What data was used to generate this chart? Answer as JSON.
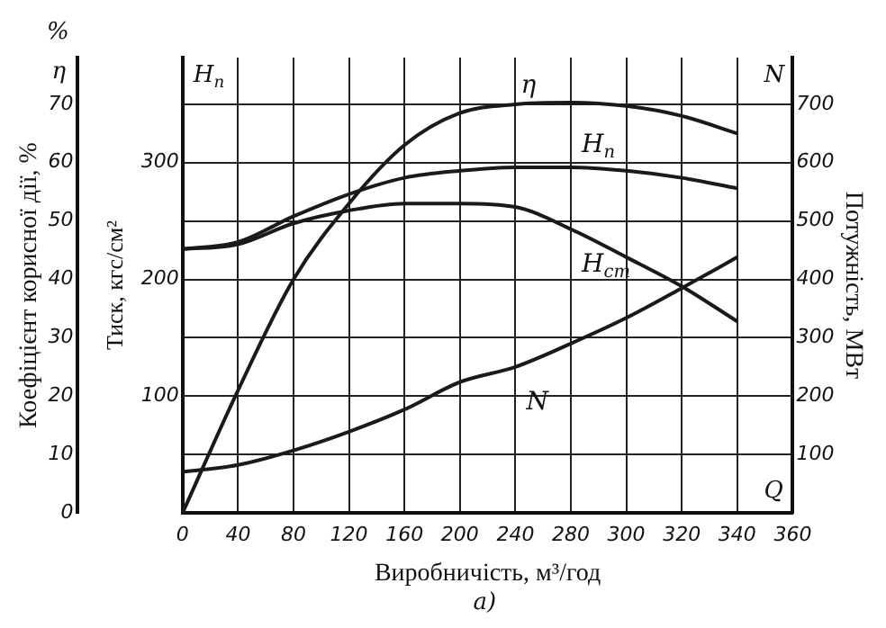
{
  "chart_data": {
    "type": "line",
    "xlabel": "Виробничість, м³/год",
    "ylabel": "Коефіцієнт корисної дії, %",
    "y2label": "Тиск, кгс/см²",
    "y3label": "Потужність, МВт",
    "categories": [
      "0",
      "40",
      "80",
      "120",
      "160",
      "200",
      "240",
      "280",
      "300",
      "320",
      "340",
      "360"
    ],
    "series": [
      {
        "name": "η",
        "color": "#1a1a1a",
        "values": [
          0,
          21,
          40,
          53,
          63,
          68.5,
          70,
          70.3,
          69.7,
          68,
          65,
          null
        ]
      },
      {
        "name": "H$_{п}$",
        "color": "#1a1a1a",
        "axis": "y2",
        "values": [
          226,
          232,
          254,
          273,
          287,
          293,
          296,
          296,
          293,
          287,
          278,
          null
        ]
      },
      {
        "name": "H$_{ст}$",
        "color": "#1a1a1a",
        "axis": "y2",
        "values": [
          226,
          230,
          248,
          259,
          265,
          265,
          262,
          243,
          219,
          194,
          164,
          null
        ]
      },
      {
        "name": "N",
        "color": "#1a1a1a",
        "axis": "y3",
        "values": [
          70,
          82,
          107,
          139,
          177,
          224,
          250,
          290,
          334,
          385,
          438,
          null
        ]
      }
    ],
    "ylim": [
      0,
      78
    ],
    "yticks": [
      0,
      10,
      20,
      30,
      40,
      50,
      60,
      70
    ],
    "y2lim": [
      0,
      390
    ],
    "y2ticks": [
      100,
      200,
      300
    ],
    "y3lim": [
      0,
      780
    ],
    "y3ticks": [
      100,
      200,
      300,
      400,
      500,
      600,
      700
    ],
    "grid": true,
    "legend": false,
    "marker": "none",
    "line_style": "solid",
    "annotations": [
      "η",
      "%",
      "H$_{п}$",
      "N",
      "Q",
      "а)"
    ]
  }
}
